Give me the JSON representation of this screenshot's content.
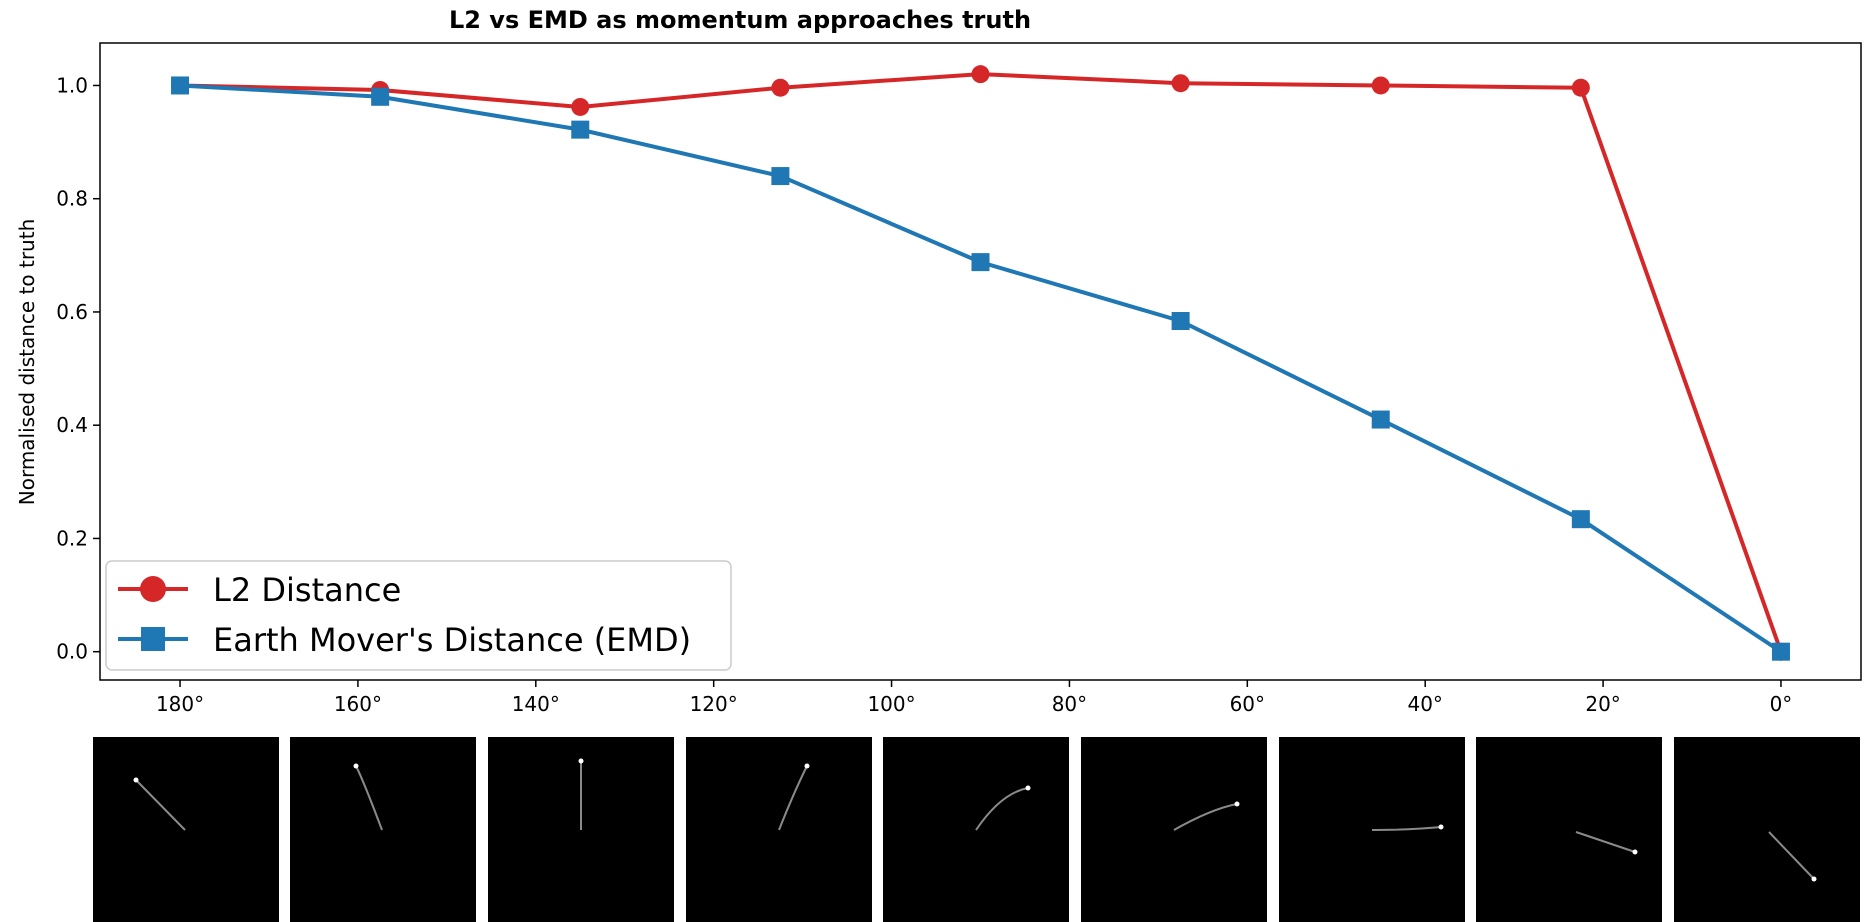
{
  "chart_data": {
    "type": "line",
    "title": "L2 vs EMD as momentum approaches truth",
    "xlabel": "",
    "ylabel": "Normalised distance to truth",
    "x": [
      180,
      157.5,
      135,
      112.5,
      90,
      67.5,
      45,
      22.5,
      0
    ],
    "xlim": [
      189,
      -9
    ],
    "ylim": [
      -0.05,
      1.075
    ],
    "x_ticks": [
      180,
      160,
      140,
      120,
      100,
      80,
      60,
      40,
      20,
      0
    ],
    "x_tick_labels": [
      "180°",
      "160°",
      "140°",
      "120°",
      "100°",
      "80°",
      "60°",
      "40°",
      "20°",
      "0°"
    ],
    "y_ticks": [
      0.0,
      0.2,
      0.4,
      0.6,
      0.8,
      1.0
    ],
    "y_tick_labels": [
      "0.0",
      "0.2",
      "0.4",
      "0.6",
      "0.8",
      "1.0"
    ],
    "grid": false,
    "legend_position": "lower-left",
    "series": [
      {
        "name": "L2 Distance",
        "color": "#d62728",
        "marker": "circle",
        "values": [
          1.0,
          0.992,
          0.962,
          0.996,
          1.02,
          1.004,
          1.0,
          0.996,
          0.0
        ]
      },
      {
        "name": "Earth Mover's Distance (EMD)",
        "color": "#1f77b4",
        "marker": "square",
        "values": [
          1.0,
          0.98,
          0.922,
          0.84,
          0.688,
          0.584,
          0.41,
          0.234,
          0.0
        ]
      }
    ]
  },
  "thumbnails": {
    "description_free": true,
    "angles_deg": [
      180,
      157.5,
      135,
      112.5,
      90,
      67.5,
      45,
      22.5,
      0
    ]
  }
}
